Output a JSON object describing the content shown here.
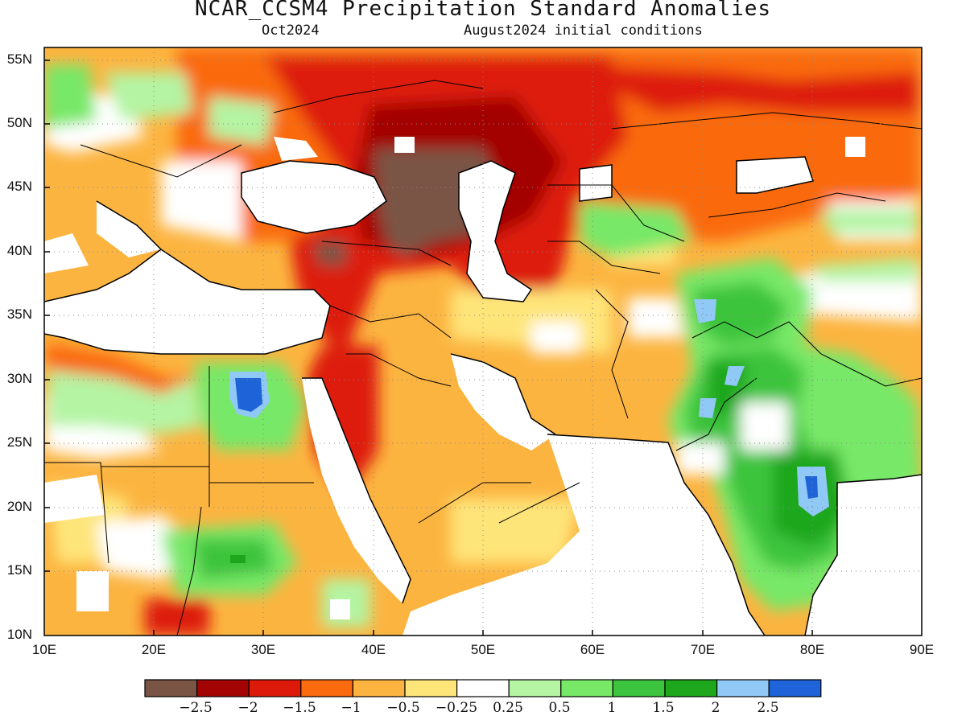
{
  "header": {
    "title": "NCAR_CCSM4 Precipitation Standard Anomalies",
    "valid_month": "Oct2024",
    "init": "August2024 initial conditions"
  },
  "axes": {
    "lat_labels": [
      "55N",
      "50N",
      "45N",
      "40N",
      "35N",
      "30N",
      "25N",
      "20N",
      "15N",
      "10N"
    ],
    "lon_labels": [
      "10E",
      "20E",
      "30E",
      "40E",
      "50E",
      "60E",
      "70E",
      "80E",
      "90E"
    ],
    "lon_range": [
      10,
      90
    ],
    "lat_range": [
      10,
      56
    ]
  },
  "colorbar": {
    "colors": [
      "#7a5445",
      "#a30303",
      "#dd1a0a",
      "#fa6a0e",
      "#fcb440",
      "#fee57a",
      "#ffffff",
      "#b4f4a3",
      "#78e868",
      "#3cc43e",
      "#1ea71c",
      "#90c9f5",
      "#1f63d8"
    ],
    "labels": [
      "−2.5",
      "−2",
      "−1.5",
      "−1",
      "−0.5",
      "−0.25",
      "0.25",
      "0.5",
      "1",
      "1.5",
      "2",
      "2.5"
    ]
  },
  "map": {
    "description_colors": {
      "dry_extreme": "#7a5445",
      "wet_extreme": "#1f63d8"
    }
  }
}
